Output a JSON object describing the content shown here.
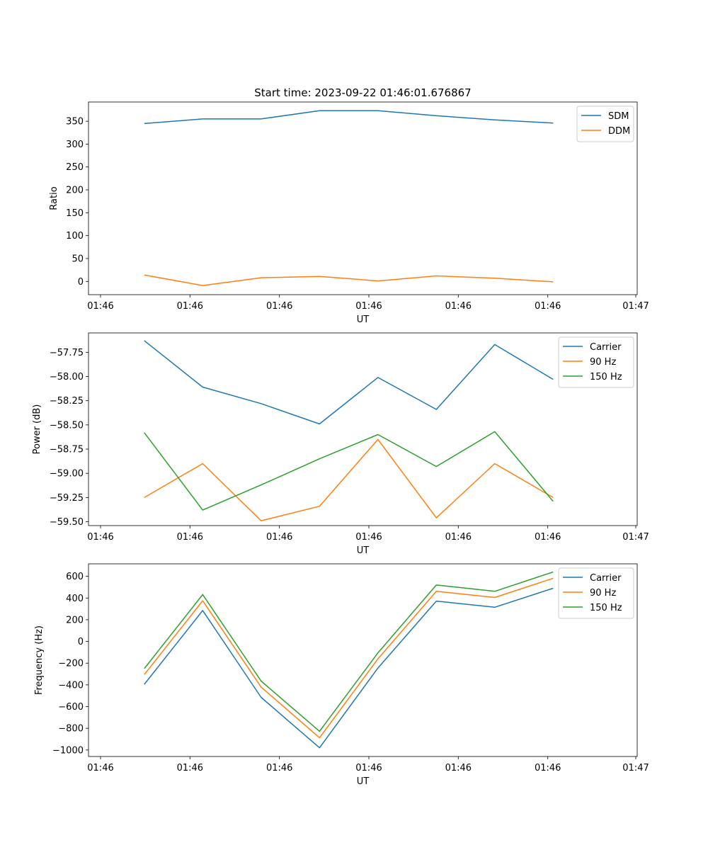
{
  "title": "Start time: 2023-09-22 01:46:01.676867",
  "colors": {
    "c0": "#1f77b4",
    "c1": "#ff7f0e",
    "c2": "#2ca02c"
  },
  "chart_data": [
    {
      "type": "line",
      "xlabel": "UT",
      "ylabel": "Ratio",
      "x_tick_labels": [
        "01:46",
        "01:46",
        "01:46",
        "01:46",
        "01:46",
        "01:46",
        "01:47"
      ],
      "y_ticks": [
        0,
        50,
        100,
        150,
        200,
        250,
        300,
        350
      ],
      "ylim": [
        -29,
        392
      ],
      "legend_position": "top-right",
      "series": [
        {
          "name": "SDM",
          "color": "#1f77b4",
          "values": [
            345,
            355,
            355,
            373,
            373,
            362,
            353,
            346
          ]
        },
        {
          "name": "DDM",
          "color": "#ff7f0e",
          "values": [
            14,
            -9,
            8,
            11,
            1,
            12,
            7,
            -1
          ]
        }
      ]
    },
    {
      "type": "line",
      "xlabel": "UT",
      "ylabel": "Power (dB)",
      "x_tick_labels": [
        "01:46",
        "01:46",
        "01:46",
        "01:46",
        "01:46",
        "01:46",
        "01:47"
      ],
      "y_ticks": [
        -59.5,
        -59.25,
        -59.0,
        -58.75,
        -58.5,
        -58.25,
        -58.0,
        -57.75
      ],
      "y_tick_labels": [
        "−59.50",
        "−59.25",
        "−59.00",
        "−58.75",
        "−58.50",
        "−58.25",
        "−58.00",
        "−57.75"
      ],
      "ylim": [
        -59.54,
        -57.55
      ],
      "legend_position": "top-right",
      "series": [
        {
          "name": "Carrier",
          "color": "#1f77b4",
          "values": [
            -57.63,
            -58.11,
            -58.28,
            -58.49,
            -58.01,
            -58.34,
            -57.67,
            -58.03
          ]
        },
        {
          "name": "90 Hz",
          "color": "#ff7f0e",
          "values": [
            -59.25,
            -58.9,
            -59.49,
            -59.34,
            -58.65,
            -59.46,
            -58.9,
            -59.25
          ]
        },
        {
          "name": "150 Hz",
          "color": "#2ca02c",
          "values": [
            -58.58,
            -59.38,
            -59.12,
            -58.85,
            -58.6,
            -58.93,
            -58.57,
            -59.29
          ]
        }
      ]
    },
    {
      "type": "line",
      "xlabel": "UT",
      "ylabel": "Frequency (Hz)",
      "x_tick_labels": [
        "01:46",
        "01:46",
        "01:46",
        "01:46",
        "01:46",
        "01:46",
        "01:47"
      ],
      "y_ticks": [
        -1000,
        -800,
        -600,
        -400,
        -200,
        0,
        200,
        400,
        600
      ],
      "y_tick_labels": [
        "−1000",
        "−800",
        "−600",
        "−400",
        "−200",
        "0",
        "200",
        "400",
        "600"
      ],
      "ylim": [
        -1060,
        715
      ],
      "legend_position": "top-right",
      "series": [
        {
          "name": "Carrier",
          "color": "#1f77b4",
          "values": [
            -395,
            285,
            -515,
            -980,
            -245,
            372,
            315,
            490
          ]
        },
        {
          "name": "90 Hz",
          "color": "#ff7f0e",
          "values": [
            -305,
            375,
            -420,
            -888,
            -160,
            462,
            405,
            582
          ]
        },
        {
          "name": "150 Hz",
          "color": "#2ca02c",
          "values": [
            -250,
            432,
            -365,
            -828,
            -105,
            520,
            462,
            640
          ]
        }
      ]
    }
  ]
}
